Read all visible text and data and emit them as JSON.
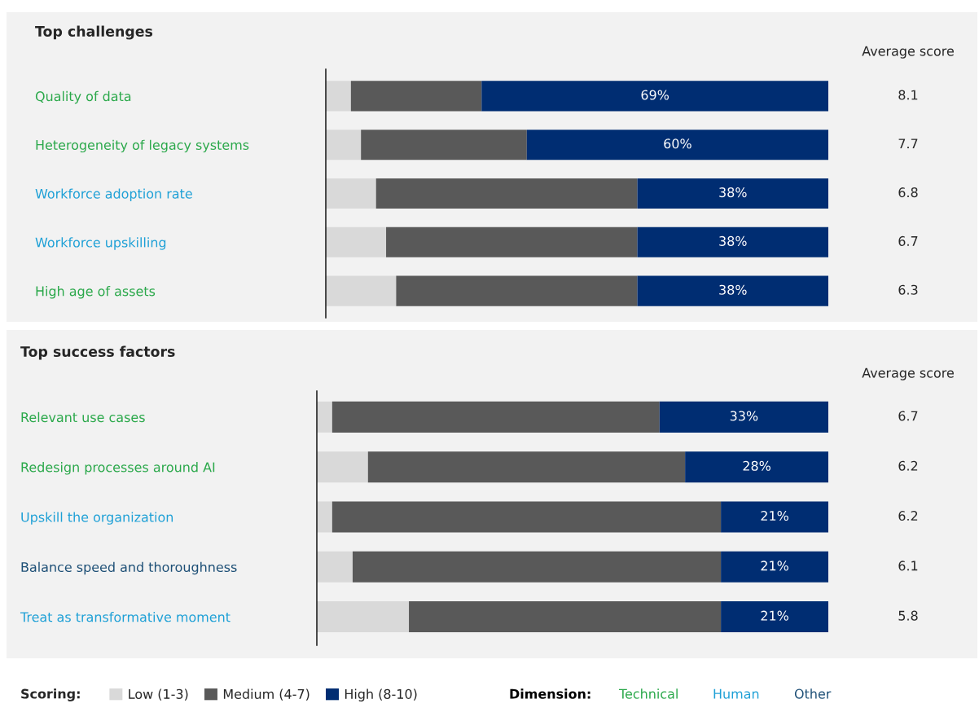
{
  "chart_data": [
    {
      "type": "bar",
      "orientation": "horizontal",
      "stacked": true,
      "title": "Top challenges",
      "categories": [
        "Quality of data",
        "Heterogeneity of legacy systems",
        "Workforce adoption rate",
        "Workforce upskilling",
        "High age of assets"
      ],
      "series": [
        {
          "color": "#d9d9d9",
          "values": [
            5,
            7,
            10,
            12,
            14
          ]
        },
        {
          "color": "#595959",
          "values": [
            26,
            33,
            52,
            50,
            48
          ]
        },
        {
          "color": "#002d72",
          "values": [
            69,
            60,
            38,
            38,
            38
          ],
          "value_labels": [
            "69%",
            "60%",
            "38%",
            "38%",
            "38%"
          ]
        }
      ],
      "annotations": [
        "Average score",
        "8.1",
        "7.7",
        "6.8",
        "6.7",
        "6.3"
      ]
    },
    {
      "type": "bar",
      "orientation": "horizontal",
      "stacked": true,
      "title": "Top success factors",
      "categories": [
        "Relevant use cases",
        "Redesign processes around AI",
        "Upskill the organization",
        "Balance speed and thoroughness",
        "Treat as transformative moment"
      ],
      "series": [
        {
          "name": "Low (1-3)",
          "color": "#d9d9d9",
          "values": [
            3,
            10,
            3,
            7,
            18
          ]
        },
        {
          "name": "Medium (4-7)",
          "color": "#595959",
          "values": [
            64,
            62,
            76,
            72,
            61
          ]
        },
        {
          "name": "High (8-10)",
          "color": "#002d72",
          "values": [
            33,
            28,
            21,
            21,
            21
          ],
          "value_labels": [
            "33%",
            "28%",
            "21%",
            "21%",
            "21%"
          ]
        }
      ],
      "legend": "bottom",
      "legend_title": "Scoring:",
      "annotations": [
        "Average score",
        "6.7",
        "6.2",
        "6.2",
        "6.1",
        "5.8",
        "Dimension:",
        "Technical",
        "Human",
        "Other"
      ]
    }
  ]
}
